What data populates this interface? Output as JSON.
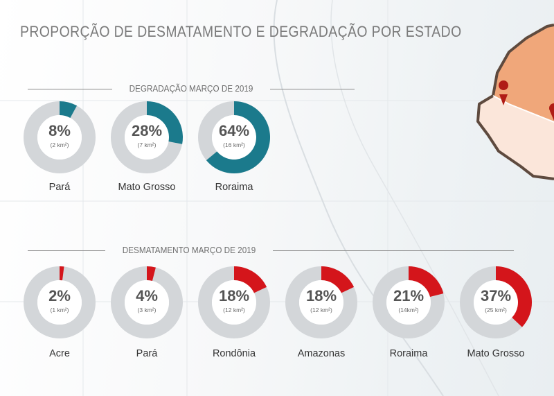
{
  "title": "PROPORÇÃO DE DESMATAMENTO E DEGRADAÇÃO POR ESTADO",
  "colors": {
    "degradation": "#1b7a8c",
    "deforestation": "#d4151b",
    "ring_bg": "#d3d6d9",
    "text": "#555555",
    "map_fill_top": "#f0a77a",
    "map_fill_bottom": "#fbe6da",
    "map_border": "#5e4a3e",
    "marker": "#b01c16"
  },
  "chart_data": [
    {
      "type": "pie",
      "title": "DEGRADAÇÃO MARÇO DE 2019",
      "color": "#1b7a8c",
      "items": [
        {
          "category": "Pará",
          "value": 8,
          "label": "8%",
          "area": "(2 km²)"
        },
        {
          "category": "Mato Grosso",
          "value": 28,
          "label": "28%",
          "area": "(7 km²)"
        },
        {
          "category": "Roraima",
          "value": 64,
          "label": "64%",
          "area": "(16 km²)"
        }
      ]
    },
    {
      "type": "pie",
      "title": "DESMATAMENTO MARÇO DE 2019",
      "color": "#d4151b",
      "items": [
        {
          "category": "Acre",
          "value": 2,
          "label": "2%",
          "area": "(1 km²)"
        },
        {
          "category": "Pará",
          "value": 4,
          "label": "4%",
          "area": "(3 km²)"
        },
        {
          "category": "Rondônia",
          "value": 18,
          "label": "18%",
          "area": "(12 km²)"
        },
        {
          "category": "Amazonas",
          "value": 18,
          "label": "18%",
          "area": "(12 km²)"
        },
        {
          "category": "Roraima",
          "value": 21,
          "label": "21%",
          "area": "(14km²)"
        },
        {
          "category": "Mato Grosso",
          "value": 37,
          "label": "37%",
          "area": "(25 km²)"
        }
      ]
    }
  ]
}
